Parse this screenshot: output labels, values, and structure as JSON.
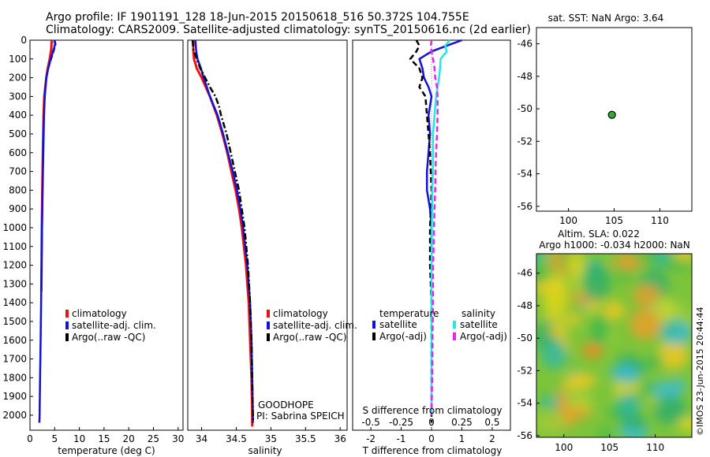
{
  "header": {
    "line1": "Argo profile: IF 1901191_128 18-Jun-2015 20150618_516 50.372S 104.755E",
    "line2": "Climatology: CARS2009. Satellite-adjusted climatology: synTS_20150616.nc (2d earlier)"
  },
  "colors": {
    "climatology": "#ee1111",
    "satellite": "#1111dd",
    "argo": "#000000",
    "satellite_s": "#22e8e8",
    "argo_s": "#ee22ee",
    "marker": "#33aa33"
  },
  "chart_data": [
    {
      "id": "temperature",
      "type": "line",
      "xlabel": "temperature (deg C)",
      "ylabel": "",
      "xlim": [
        0,
        31
      ],
      "ylim": [
        2080,
        0
      ],
      "xticks": [
        0,
        5,
        10,
        15,
        20,
        25,
        30
      ],
      "yticks": [
        0,
        100,
        200,
        300,
        400,
        500,
        600,
        700,
        800,
        900,
        1000,
        1100,
        1200,
        1300,
        1400,
        1500,
        1600,
        1700,
        1800,
        1900,
        2000
      ],
      "legend": [
        "climatology",
        "satellite-adj. clim.",
        "Argo(..raw -QC)"
      ],
      "series": [
        {
          "name": "climatology",
          "depth": [
            0,
            50,
            100,
            150,
            200,
            300,
            400,
            600,
            800,
            1000,
            1200,
            1340
          ],
          "values": [
            4.4,
            4.3,
            4.0,
            3.6,
            3.3,
            2.9,
            2.75,
            2.6,
            2.5,
            2.4,
            2.35,
            2.3
          ]
        },
        {
          "name": "satellite-adj. clim.",
          "depth": [
            0,
            20,
            50,
            100,
            150,
            200,
            300,
            400,
            600,
            800,
            1000,
            1200,
            1400,
            1600,
            1800,
            2000,
            2040
          ],
          "values": [
            5.0,
            5.2,
            4.9,
            4.3,
            3.7,
            3.3,
            3.0,
            2.85,
            2.7,
            2.55,
            2.45,
            2.35,
            2.25,
            2.15,
            2.05,
            1.95,
            1.9
          ]
        },
        {
          "name": "Argo(..raw -QC)",
          "depth": [
            0,
            20,
            50,
            100,
            150,
            200,
            300,
            400,
            600,
            800,
            1000,
            1200,
            1400,
            1600,
            1800,
            2000,
            2040
          ],
          "values": [
            4.9,
            5.1,
            4.8,
            4.2,
            3.7,
            3.3,
            3.0,
            2.85,
            2.7,
            2.55,
            2.45,
            2.35,
            2.25,
            2.15,
            2.05,
            1.95,
            1.9
          ]
        }
      ]
    },
    {
      "id": "salinity",
      "type": "line",
      "xlabel": "salinity",
      "xlim": [
        33.8,
        36.1
      ],
      "ylim": [
        2080,
        0
      ],
      "xticks": [
        34,
        34.5,
        35,
        35.5,
        36
      ],
      "legend": [
        "climatology",
        "satellite-adj. clim.",
        "Argo(..raw -QC)"
      ],
      "annotation": [
        "GOODHOPE",
        "PI: Sabrina SPEICH"
      ],
      "series": [
        {
          "name": "climatology",
          "depth": [
            0,
            50,
            100,
            150,
            200,
            300,
            400,
            500,
            600,
            700,
            800,
            900,
            1000,
            1200,
            1400,
            1600,
            1800,
            2000,
            2060
          ],
          "values": [
            33.88,
            33.88,
            33.89,
            33.93,
            34.0,
            34.12,
            34.22,
            34.3,
            34.37,
            34.43,
            34.49,
            34.54,
            34.58,
            34.64,
            34.68,
            34.7,
            34.72,
            34.73,
            34.73
          ]
        },
        {
          "name": "satellite-adj. clim.",
          "depth": [
            0,
            50,
            100,
            150,
            200,
            300,
            400,
            500,
            600,
            700,
            800,
            900,
            1000,
            1200,
            1400,
            1600,
            1800,
            2000,
            2040
          ],
          "values": [
            33.91,
            33.92,
            33.94,
            33.99,
            34.03,
            34.12,
            34.23,
            34.31,
            34.38,
            34.45,
            34.51,
            34.56,
            34.6,
            34.66,
            34.7,
            34.72,
            34.73,
            34.74,
            34.74
          ]
        },
        {
          "name": "Argo(..raw -QC)",
          "depth": [
            0,
            50,
            100,
            150,
            200,
            250,
            300,
            350,
            400,
            500,
            600,
            700,
            800,
            900,
            1000,
            1200,
            1400,
            1600,
            1800,
            2000,
            2040
          ],
          "values": [
            33.87,
            33.88,
            33.93,
            33.98,
            34.05,
            34.12,
            34.2,
            34.25,
            34.28,
            34.36,
            34.42,
            34.48,
            34.54,
            34.58,
            34.62,
            34.67,
            34.7,
            34.72,
            34.73,
            34.74,
            34.74
          ]
        }
      ]
    },
    {
      "id": "difference",
      "type": "line",
      "xlabel": "T difference from climatology",
      "x2label": "S difference from climatology",
      "xlim": [
        -2.6,
        2.6
      ],
      "ylim": [
        2080,
        0
      ],
      "xticks": [
        -2,
        -1,
        0,
        1,
        2
      ],
      "x2ticks": [
        -0.5,
        -0.25,
        0,
        0.25,
        0.5
      ],
      "legend_headers": [
        "temperature",
        "salinity"
      ],
      "legend": [
        "satellite",
        "Argo(-adj)",
        "satellite",
        "Argo(-adj)"
      ],
      "series": [
        {
          "name": "satellite",
          "depth": [
            0,
            30,
            60,
            100,
            150,
            200,
            250,
            300,
            350,
            400,
            500,
            600,
            700,
            800,
            900,
            1000,
            1100
          ],
          "values": [
            1.0,
            0.5,
            0.0,
            -0.4,
            -0.3,
            -0.25,
            -0.1,
            0.0,
            -0.05,
            -0.1,
            -0.05,
            -0.1,
            -0.15,
            -0.15,
            -0.05,
            0.0,
            0.0
          ]
        },
        {
          "name": "Argo(-adj)",
          "depth": [
            0,
            30,
            60,
            100,
            150,
            200,
            250,
            300,
            400,
            500,
            600,
            800,
            1000,
            1200,
            1400,
            1600,
            1800,
            2000,
            2040
          ],
          "values": [
            -0.5,
            -0.4,
            -0.5,
            -0.7,
            -0.4,
            -0.3,
            -0.4,
            -0.2,
            -0.15,
            -0.1,
            -0.05,
            0.0,
            -0.05,
            -0.05,
            0.0,
            0.0,
            0.0,
            0.0,
            0.0
          ]
        },
        {
          "name": "satellite",
          "depth": [
            0,
            30,
            60,
            100,
            150,
            200,
            300,
            400,
            500,
            600,
            700,
            800,
            900,
            1000,
            1100,
            1200,
            1400,
            1600,
            1800,
            2000
          ],
          "values": [
            0.6,
            0.45,
            0.5,
            0.3,
            0.28,
            0.25,
            0.15,
            0.1,
            0.05,
            0.05,
            0.05,
            0.02,
            0.02,
            0.01,
            0.01,
            0.0,
            0.0,
            0.0,
            0.0,
            0.0
          ]
        },
        {
          "name": "Argo(-adj)",
          "depth": [
            0,
            30,
            60,
            100,
            150,
            200,
            250,
            300,
            400,
            500,
            600,
            700,
            800,
            900,
            1000,
            1100,
            1200,
            1400,
            1600,
            1800,
            2000
          ],
          "values": [
            0.0,
            -0.02,
            0.0,
            0.05,
            0.1,
            0.12,
            0.18,
            0.2,
            0.2,
            0.18,
            0.15,
            0.13,
            0.12,
            0.1,
            0.08,
            0.07,
            0.05,
            0.05,
            0.03,
            0.02,
            0.0
          ]
        }
      ]
    },
    {
      "id": "position",
      "type": "scatter",
      "title": "sat. SST: NaN Argo: 3.64",
      "xlim": [
        96.5,
        113.5
      ],
      "ylim": [
        -56.3,
        -45
      ],
      "xticks": [
        100,
        105,
        110
      ],
      "yticks": [
        -46,
        -48,
        -50,
        -52,
        -54,
        -56
      ],
      "points": [
        {
          "x": 104.755,
          "y": -50.372
        }
      ]
    },
    {
      "id": "sla_map",
      "type": "heatmap",
      "title_lines": [
        "Altim. SLA: 0.022",
        "Argo h1000: -0.034 h2000: NaN"
      ],
      "xlim": [
        97,
        114
      ],
      "ylim": [
        -56.1,
        -44.8
      ],
      "xticks": [
        100,
        105,
        110
      ],
      "yticks": [
        -46,
        -48,
        -50,
        -52,
        -54,
        -56
      ],
      "side_label": "©IMOS 23-Jun-2015 20:44:44"
    }
  ]
}
